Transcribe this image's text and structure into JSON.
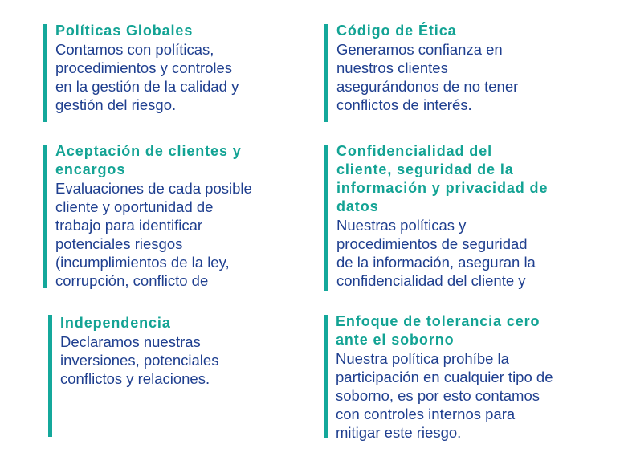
{
  "accent_color": "#14a89b",
  "body_color": "#1f3f8f",
  "blocks": [
    {
      "title": [
        "Políticas Globales"
      ],
      "body": [
        "Contamos con políticas,",
        "procedimientos y controles",
        "en la gestión de la calidad y",
        "gestión del riesgo."
      ]
    },
    {
      "title": [
        "Código de Ética"
      ],
      "body": [
        "Generamos confianza en",
        "nuestros clientes",
        "asegurándonos de no tener",
        "conflictos de interés."
      ]
    },
    {
      "title": [
        "Aceptación de clientes y",
        "encargos"
      ],
      "body": [
        "Evaluaciones de cada posible",
        "cliente y oportunidad de",
        "trabajo para identificar",
        "potenciales riesgos",
        "(incumplimientos de la ley,",
        "corrupción, conflicto de"
      ]
    },
    {
      "title": [
        "Confidencialidad del",
        "cliente, seguridad de la",
        "información y privacidad de",
        "datos"
      ],
      "body": [
        "Nuestras políticas y",
        "procedimientos de seguridad",
        "de la información, aseguran la",
        "confidencialidad del cliente y"
      ]
    },
    {
      "title": [
        "Independencia"
      ],
      "body": [
        "Declaramos nuestras",
        "inversiones, potenciales",
        "conflictos y relaciones."
      ]
    },
    {
      "title": [
        "Enfoque de tolerancia cero",
        "ante el soborno"
      ],
      "body": [
        "Nuestra política prohíbe la",
        "participación en cualquier tipo de",
        "soborno, es por esto contamos",
        "con controles internos para",
        "mitigar este riesgo."
      ]
    }
  ]
}
